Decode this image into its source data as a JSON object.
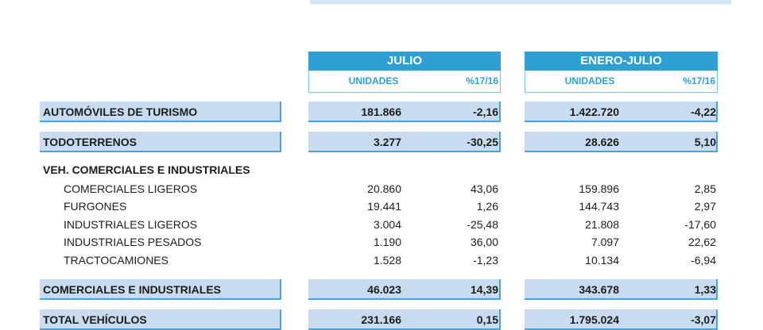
{
  "header": {
    "julio": "JULIO",
    "enero_julio": "ENERO-JULIO",
    "columns": [
      "UNIDADES",
      "%17/16",
      "UNIDADES",
      "%17/16"
    ]
  },
  "table": {
    "rows": [
      [
        "AUTOMÓVILES DE TURISMO",
        "181.866",
        "-2,16",
        "1.422.720",
        "-4,22"
      ],
      [
        "TODOTERRENOS",
        "3.277",
        "-30,25",
        "28.626",
        "5,10"
      ],
      [
        "VEH. COMERCIALES E INDUSTRIALES"
      ],
      [
        "COMERCIALES LIGEROS",
        "20.860",
        "43,06",
        "159.896",
        "2,85"
      ],
      [
        "FURGONES",
        "19.441",
        "1,26",
        "144.743",
        "2,97"
      ],
      [
        "INDUSTRIALES LIGEROS",
        "3.004",
        "-25,48",
        "21.808",
        "-17,60"
      ],
      [
        "INDUSTRIALES PESADOS",
        "1.190",
        "36,00",
        "7.097",
        "22,62"
      ],
      [
        "TRACTOCAMIONES",
        "1.528",
        "-1,23",
        "10.134",
        "-6,94"
      ],
      [
        "COMERCIALES E INDUSTRIALES",
        "46.023",
        "14,39",
        "343.678",
        "1,33"
      ],
      [
        "TOTAL VEHÍCULOS",
        "231.166",
        "0,15",
        "1.795.024",
        "-3,07"
      ]
    ]
  }
}
